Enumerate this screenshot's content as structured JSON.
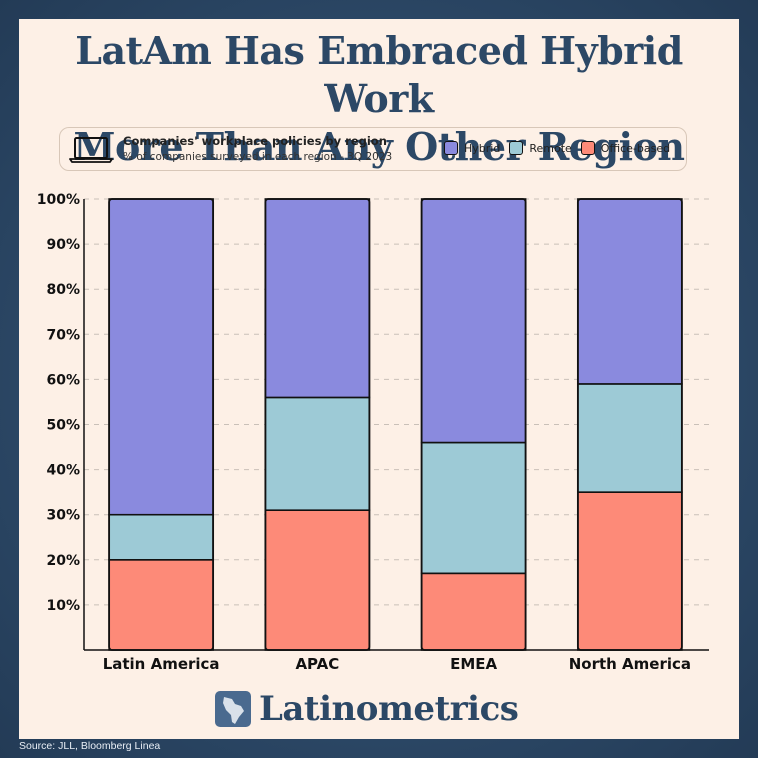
{
  "title_line1": "LatAm Has Embraced Hybrid Work",
  "title_line2": "More Than Any Other Region",
  "legend": {
    "title": "Companies' workplace policies by region",
    "subtitle": "% of companies surveyed in each region - 3Q 2023"
  },
  "brand": "Latinometrics",
  "source": "Source: JLL, Bloomberg Linea",
  "chart_data": {
    "type": "bar",
    "stacked": true,
    "categories": [
      "Latin America",
      "APAC",
      "EMEA",
      "North America"
    ],
    "series": [
      {
        "name": "Office-based",
        "color": "#fd8a78",
        "values": [
          20,
          31,
          17,
          35
        ]
      },
      {
        "name": "Remote",
        "color": "#9dcad6",
        "values": [
          10,
          25,
          29,
          24
        ]
      },
      {
        "name": "Hybrid",
        "color": "#8a8ade",
        "values": [
          70,
          44,
          54,
          41
        ]
      }
    ],
    "legend_order": [
      "Hybrid",
      "Remote",
      "Office-based"
    ],
    "ylim": [
      0,
      100
    ],
    "yticks": [
      "10%",
      "20%",
      "30%",
      "40%",
      "50%",
      "60%",
      "70%",
      "80%",
      "90%",
      "100%"
    ],
    "ytick_values": [
      10,
      20,
      30,
      40,
      50,
      60,
      70,
      80,
      90,
      100
    ],
    "grid": true
  }
}
